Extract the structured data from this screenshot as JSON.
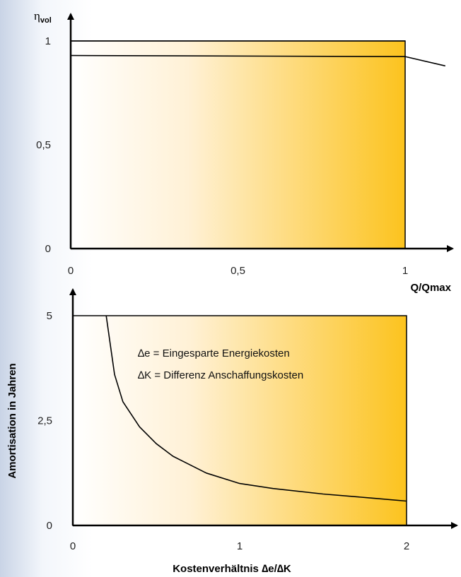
{
  "chart_data": [
    {
      "type": "line",
      "ylabel": "η",
      "ylabel_sub": "vol",
      "xlabel": "Q/Qmax",
      "xlim": [
        0,
        1
      ],
      "ylim": [
        0,
        1
      ],
      "x_ticks": [
        {
          "value": 0,
          "label": "0"
        },
        {
          "value": 0.5,
          "label": "0,5"
        },
        {
          "value": 1,
          "label": "1"
        }
      ],
      "y_ticks": [
        {
          "value": 0,
          "label": "0"
        },
        {
          "value": 0.5,
          "label": "0,5"
        },
        {
          "value": 1,
          "label": "1"
        }
      ],
      "series": [
        {
          "x": [
            0,
            1
          ],
          "y": [
            1,
            1
          ]
        },
        {
          "x": [
            0,
            1,
            1.12
          ],
          "y": [
            0.93,
            0.925,
            0.88
          ]
        }
      ],
      "gradient": {
        "from": "#ffffff",
        "to": "#fcc31e"
      }
    },
    {
      "type": "line",
      "ylabel": "Amortisation in Jahren",
      "xlabel": "Kostenverhältnis ∆e/∆K",
      "xlim": [
        0,
        2
      ],
      "ylim": [
        0,
        5
      ],
      "x_ticks": [
        {
          "value": 0,
          "label": "0"
        },
        {
          "value": 1,
          "label": "1"
        },
        {
          "value": 2,
          "label": "2"
        }
      ],
      "y_ticks": [
        {
          "value": 0,
          "label": "0"
        },
        {
          "value": 2.5,
          "label": "2,5"
        },
        {
          "value": 5,
          "label": "5"
        }
      ],
      "series": [
        {
          "x": [
            0.2,
            0.25,
            0.3,
            0.4,
            0.5,
            0.6,
            0.8,
            1.0,
            1.2,
            1.5,
            1.8,
            2.0
          ],
          "y": [
            5.0,
            3.6,
            2.95,
            2.35,
            1.95,
            1.65,
            1.25,
            1.0,
            0.88,
            0.75,
            0.65,
            0.58
          ]
        }
      ],
      "annotations": [
        "∆e = Eingesparte Energiekosten",
        "∆K = Differenz Anschaffungskosten"
      ],
      "gradient": {
        "from": "#ffffff",
        "to": "#fcc31e"
      }
    }
  ]
}
